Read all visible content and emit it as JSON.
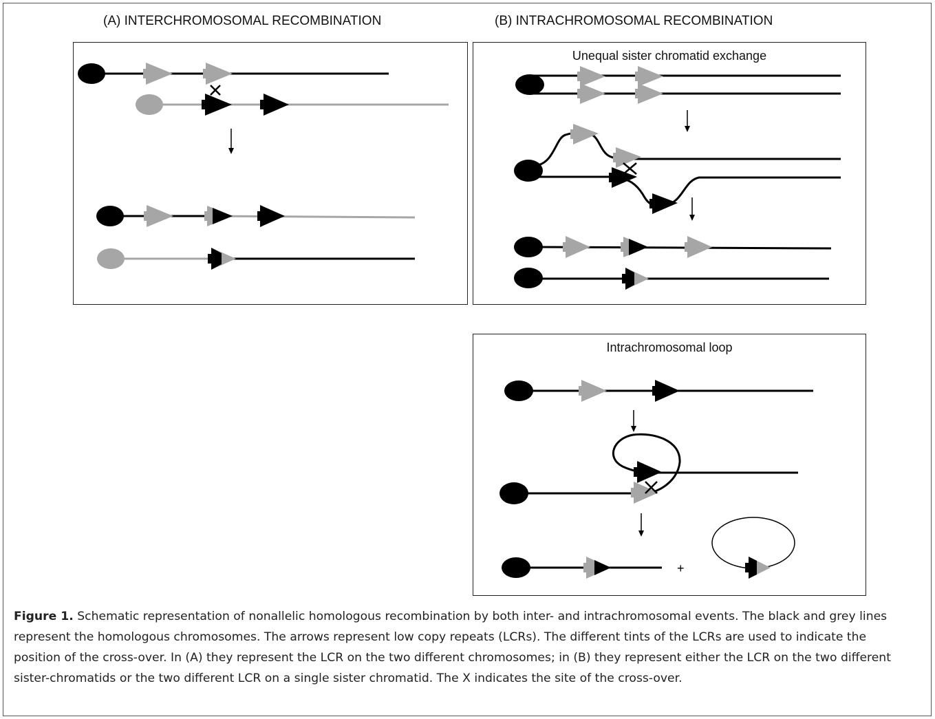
{
  "panel_a": {
    "heading": "(A) INTERCHROMOSOMAL RECOMBINATION"
  },
  "panel_b": {
    "heading": "(B) INTRACHROMOSOMAL RECOMBINATION",
    "unequal_label": "Unequal sister chromatid exchange",
    "loop_label": "Intrachromosomal loop"
  },
  "plus_sign": "+",
  "colors": {
    "black": "#000000",
    "grey": "#a6a6a6",
    "border": "#222222"
  },
  "caption": {
    "label": "Figure 1.",
    "text": "Schematic representation of nonallelic homologous recombination by both inter- and intrachromosomal events. The black and grey lines represent the homologous chromosomes. The arrows represent low copy repeats (LCRs). The different tints of the LCRs are used to indicate the position of the cross-over. In (A) they represent the LCR on the two different chromosomes; in (B) they represent either the LCR on the two different sister-chromatids or the two different LCR on a single sister chromatid. The X indicates the site of the cross-over."
  }
}
